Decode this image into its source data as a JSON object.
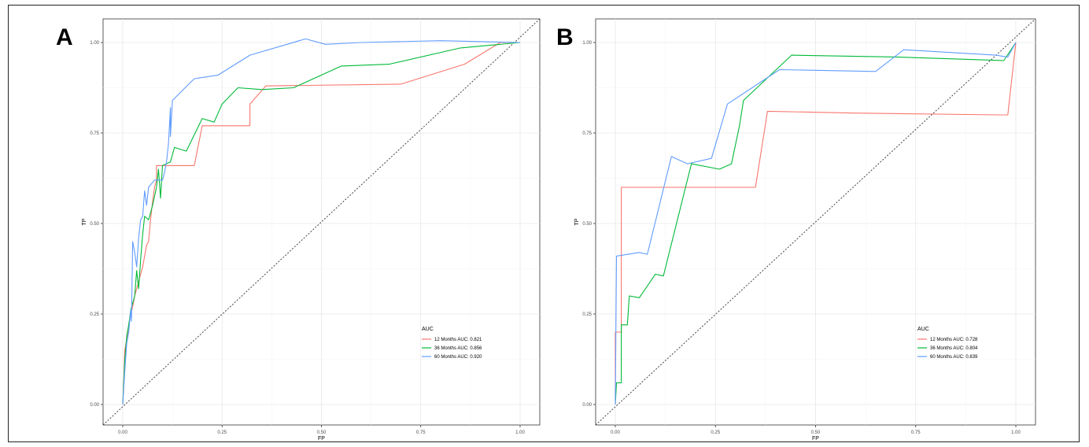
{
  "chart_data": [
    {
      "type": "line",
      "panel_label": "A",
      "xlabel": "FP",
      "ylabel": "TP",
      "xlim": [
        0,
        1
      ],
      "ylim": [
        0,
        1
      ],
      "xticks": [
        "0.00",
        "0.25",
        "0.50",
        "0.75",
        "1.00"
      ],
      "yticks": [
        "0.00",
        "0.25",
        "0.50",
        "0.75",
        "1.00"
      ],
      "grid": true,
      "diagonal_reference": true,
      "legend": {
        "title": "AUC",
        "placement": "bottom-right",
        "entries": [
          "12 Months AUC: 0.821",
          "36 Months AUC: 0.856",
          "60 Months AUC: 0.920"
        ]
      },
      "series": [
        {
          "name": "12 Months AUC: 0.821",
          "color": "#F8766D",
          "points": [
            [
              0.0,
              0.0
            ],
            [
              0.003,
              0.08
            ],
            [
              0.005,
              0.15
            ],
            [
              0.01,
              0.18
            ],
            [
              0.015,
              0.22
            ],
            [
              0.02,
              0.25
            ],
            [
              0.025,
              0.27
            ],
            [
              0.03,
              0.3
            ],
            [
              0.04,
              0.34
            ],
            [
              0.05,
              0.38
            ],
            [
              0.06,
              0.44
            ],
            [
              0.065,
              0.45
            ],
            [
              0.07,
              0.51
            ],
            [
              0.075,
              0.56
            ],
            [
              0.08,
              0.6
            ],
            [
              0.085,
              0.62
            ],
            [
              0.085,
              0.66
            ],
            [
              0.18,
              0.66
            ],
            [
              0.2,
              0.77
            ],
            [
              0.32,
              0.77
            ],
            [
              0.32,
              0.83
            ],
            [
              0.36,
              0.88
            ],
            [
              0.7,
              0.885
            ],
            [
              0.86,
              0.94
            ],
            [
              0.95,
              1.0
            ],
            [
              1.0,
              1.0
            ]
          ]
        },
        {
          "name": "36 Months AUC: 0.856",
          "color": "#00BA38",
          "points": [
            [
              0.0,
              0.0
            ],
            [
              0.005,
              0.12
            ],
            [
              0.01,
              0.19
            ],
            [
              0.015,
              0.22
            ],
            [
              0.02,
              0.26
            ],
            [
              0.03,
              0.3
            ],
            [
              0.035,
              0.37
            ],
            [
              0.04,
              0.32
            ],
            [
              0.045,
              0.4
            ],
            [
              0.05,
              0.47
            ],
            [
              0.055,
              0.52
            ],
            [
              0.065,
              0.51
            ],
            [
              0.075,
              0.55
            ],
            [
              0.085,
              0.6
            ],
            [
              0.09,
              0.65
            ],
            [
              0.095,
              0.57
            ],
            [
              0.1,
              0.66
            ],
            [
              0.12,
              0.67
            ],
            [
              0.13,
              0.71
            ],
            [
              0.16,
              0.7
            ],
            [
              0.2,
              0.79
            ],
            [
              0.23,
              0.78
            ],
            [
              0.25,
              0.83
            ],
            [
              0.29,
              0.875
            ],
            [
              0.35,
              0.87
            ],
            [
              0.43,
              0.875
            ],
            [
              0.55,
              0.935
            ],
            [
              0.67,
              0.94
            ],
            [
              0.85,
              0.985
            ],
            [
              1.0,
              1.0
            ]
          ]
        },
        {
          "name": "60 Months AUC: 0.920",
          "color": "#619CFF",
          "points": [
            [
              0.0,
              0.0
            ],
            [
              0.005,
              0.09
            ],
            [
              0.01,
              0.17
            ],
            [
              0.015,
              0.2
            ],
            [
              0.02,
              0.26
            ],
            [
              0.022,
              0.23
            ],
            [
              0.025,
              0.45
            ],
            [
              0.03,
              0.42
            ],
            [
              0.035,
              0.38
            ],
            [
              0.04,
              0.46
            ],
            [
              0.045,
              0.51
            ],
            [
              0.05,
              0.52
            ],
            [
              0.055,
              0.59
            ],
            [
              0.06,
              0.55
            ],
            [
              0.065,
              0.6
            ],
            [
              0.08,
              0.62
            ],
            [
              0.09,
              0.62
            ],
            [
              0.1,
              0.62
            ],
            [
              0.105,
              0.64
            ],
            [
              0.11,
              0.67
            ],
            [
              0.115,
              0.72
            ],
            [
              0.12,
              0.82
            ],
            [
              0.12,
              0.74
            ],
            [
              0.125,
              0.84
            ],
            [
              0.18,
              0.9
            ],
            [
              0.24,
              0.91
            ],
            [
              0.32,
              0.965
            ],
            [
              0.46,
              1.01
            ],
            [
              0.51,
              0.995
            ],
            [
              0.6,
              1.0
            ],
            [
              0.8,
              1.005
            ],
            [
              1.0,
              1.0
            ]
          ]
        }
      ]
    },
    {
      "type": "line",
      "panel_label": "B",
      "xlabel": "FP",
      "ylabel": "TP",
      "xlim": [
        0,
        1
      ],
      "ylim": [
        0,
        1
      ],
      "xticks": [
        "0.00",
        "0.25",
        "0.50",
        "0.75",
        "1.00"
      ],
      "yticks": [
        "0.00",
        "0.25",
        "0.50",
        "0.75",
        "1.00"
      ],
      "grid": true,
      "diagonal_reference": true,
      "legend": {
        "title": "AUC",
        "placement": "bottom-right",
        "entries": [
          "12 Months AUC: 0.728",
          "36 Months AUC: 0.804",
          "60 Months AUC: 0.839"
        ]
      },
      "series": [
        {
          "name": "12 Months AUC: 0.728",
          "color": "#F8766D",
          "points": [
            [
              0.0,
              0.0
            ],
            [
              0.0,
              0.2
            ],
            [
              0.015,
              0.2
            ],
            [
              0.015,
              0.6
            ],
            [
              0.35,
              0.6
            ],
            [
              0.38,
              0.81
            ],
            [
              0.6,
              0.805
            ],
            [
              0.96,
              0.8
            ],
            [
              0.98,
              0.8
            ],
            [
              1.0,
              1.0
            ]
          ]
        },
        {
          "name": "36 Months AUC: 0.804",
          "color": "#00BA38",
          "points": [
            [
              0.0,
              0.0
            ],
            [
              0.003,
              0.06
            ],
            [
              0.015,
              0.06
            ],
            [
              0.015,
              0.22
            ],
            [
              0.03,
              0.22
            ],
            [
              0.035,
              0.3
            ],
            [
              0.06,
              0.295
            ],
            [
              0.1,
              0.36
            ],
            [
              0.12,
              0.355
            ],
            [
              0.19,
              0.665
            ],
            [
              0.26,
              0.65
            ],
            [
              0.29,
              0.665
            ],
            [
              0.31,
              0.77
            ],
            [
              0.32,
              0.84
            ],
            [
              0.44,
              0.965
            ],
            [
              0.7,
              0.96
            ],
            [
              0.97,
              0.95
            ],
            [
              1.0,
              1.0
            ]
          ]
        },
        {
          "name": "60 Months AUC: 0.839",
          "color": "#619CFF",
          "points": [
            [
              0.0,
              0.0
            ],
            [
              0.003,
              0.41
            ],
            [
              0.06,
              0.42
            ],
            [
              0.08,
              0.415
            ],
            [
              0.14,
              0.685
            ],
            [
              0.18,
              0.665
            ],
            [
              0.24,
              0.68
            ],
            [
              0.28,
              0.83
            ],
            [
              0.41,
              0.925
            ],
            [
              0.65,
              0.92
            ],
            [
              0.72,
              0.98
            ],
            [
              0.95,
              0.965
            ],
            [
              0.98,
              0.96
            ],
            [
              1.0,
              1.0
            ]
          ]
        }
      ]
    }
  ]
}
